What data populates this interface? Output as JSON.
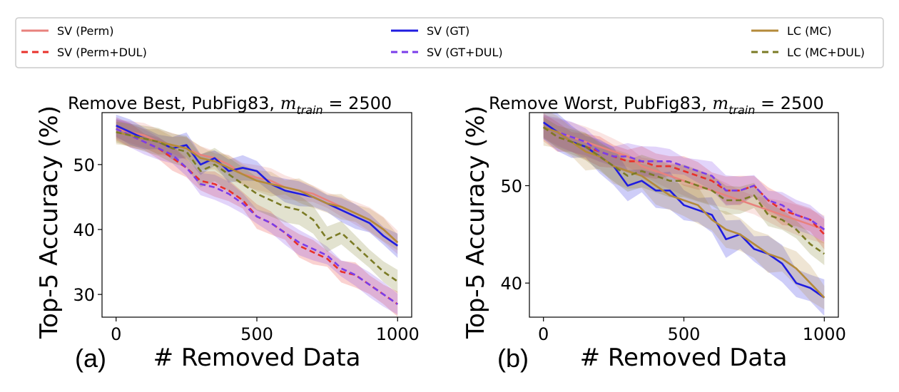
{
  "legend": {
    "entries": [
      {
        "label": "SV (Perm)",
        "color": "#e8827d",
        "dash": "solid"
      },
      {
        "label": "SV (Perm+DUL)",
        "color": "#e8312a",
        "dash": "dashed"
      },
      {
        "label": "SV (GT)",
        "color": "#1f1ce0",
        "dash": "solid"
      },
      {
        "label": "SV (GT+DUL)",
        "color": "#7a3dea",
        "dash": "dashed"
      },
      {
        "label": "LC (MC)",
        "color": "#b48a3a",
        "dash": "solid"
      },
      {
        "label": "LC (MC+DUL)",
        "color": "#7b7b25",
        "dash": "dashed"
      }
    ]
  },
  "chart_data": [
    {
      "type": "line",
      "panel_label": "(a)",
      "title_prefix": "Remove Best, PubFig83, ",
      "title_var": "m",
      "title_sub": "train",
      "title_suffix": " = 2500",
      "xlabel": "# Removed Data",
      "ylabel": "Top-5 Accuracy (%)",
      "xlim": [
        -50,
        1050
      ],
      "ylim": [
        26.5,
        58
      ],
      "xticks": [
        0,
        500,
        1000
      ],
      "yticks": [
        30,
        40,
        50
      ],
      "x": [
        0,
        50,
        100,
        150,
        200,
        250,
        300,
        350,
        400,
        450,
        500,
        550,
        600,
        650,
        700,
        750,
        800,
        850,
        900,
        950,
        1000
      ],
      "series": [
        {
          "name": "SV (Perm)",
          "band": 1.5,
          "values": [
            55.5,
            55.0,
            54.5,
            53.5,
            53.0,
            52.5,
            51.5,
            51.0,
            50.0,
            48.5,
            48.0,
            47.5,
            46.5,
            46.0,
            45.5,
            44.5,
            43.5,
            42.5,
            41.5,
            40.0,
            38.0
          ]
        },
        {
          "name": "SV (Perm+DUL)",
          "band": 1.5,
          "values": [
            55.5,
            54.5,
            53.5,
            52.5,
            51.0,
            49.5,
            47.5,
            47.0,
            46.0,
            44.5,
            42.0,
            41.0,
            39.5,
            37.5,
            36.5,
            35.5,
            33.5,
            33.0,
            31.5,
            30.0,
            28.5
          ]
        },
        {
          "name": "SV (GT)",
          "band": 1.5,
          "values": [
            56.0,
            55.0,
            54.0,
            53.5,
            52.5,
            53.0,
            50.0,
            51.0,
            49.0,
            49.5,
            49.0,
            47.0,
            46.0,
            45.5,
            45.0,
            44.0,
            43.0,
            42.0,
            41.0,
            39.0,
            37.5
          ]
        },
        {
          "name": "SV (GT+DUL)",
          "band": 1.5,
          "values": [
            55.5,
            54.5,
            53.5,
            52.5,
            51.5,
            49.5,
            47.0,
            46.5,
            45.5,
            44.0,
            42.0,
            41.0,
            39.5,
            38.0,
            37.0,
            36.0,
            34.0,
            33.0,
            31.5,
            30.0,
            28.5
          ]
        },
        {
          "name": "LC (MC)",
          "band": 1.5,
          "values": [
            55.0,
            54.5,
            54.0,
            53.5,
            53.0,
            52.5,
            51.0,
            50.5,
            49.5,
            48.5,
            47.5,
            47.0,
            46.5,
            46.0,
            45.0,
            44.0,
            43.5,
            42.5,
            41.5,
            40.0,
            38.0
          ]
        },
        {
          "name": "LC (MC+DUL)",
          "band": 2.0,
          "values": [
            55.0,
            54.5,
            54.0,
            53.5,
            52.5,
            52.0,
            49.0,
            50.0,
            48.5,
            47.0,
            45.5,
            44.5,
            43.5,
            43.0,
            41.5,
            38.5,
            39.5,
            37.5,
            35.5,
            33.5,
            32.0
          ]
        }
      ]
    },
    {
      "type": "line",
      "panel_label": "(b)",
      "title_prefix": "Remove Worst, PubFig83, ",
      "title_var": "m",
      "title_sub": "train",
      "title_suffix": " = 2500",
      "xlabel": "# Removed Data",
      "ylabel": "Top-5 Accuracy (%)",
      "xlim": [
        -50,
        1050
      ],
      "ylim": [
        36.5,
        57.5
      ],
      "xticks": [
        0,
        500,
        1000
      ],
      "yticks": [
        40,
        50
      ],
      "x": [
        0,
        50,
        100,
        150,
        200,
        250,
        300,
        350,
        400,
        450,
        500,
        550,
        600,
        650,
        700,
        750,
        800,
        850,
        900,
        950,
        1000
      ],
      "series": [
        {
          "name": "SV (Perm)",
          "band": 1.2,
          "values": [
            56.0,
            55.5,
            55.0,
            54.5,
            54.0,
            53.5,
            53.0,
            52.0,
            51.5,
            51.0,
            50.5,
            50.0,
            49.5,
            49.0,
            48.5,
            48.0,
            47.5,
            47.0,
            46.5,
            46.0,
            45.5
          ]
        },
        {
          "name": "SV (Perm+DUL)",
          "band": 1.2,
          "values": [
            56.0,
            55.0,
            54.5,
            54.0,
            53.5,
            53.0,
            52.5,
            52.5,
            52.0,
            52.0,
            51.5,
            51.0,
            50.5,
            49.5,
            49.5,
            50.0,
            48.5,
            47.5,
            47.0,
            46.5,
            45.0
          ]
        },
        {
          "name": "SV (GT)",
          "band": 1.5,
          "values": [
            56.5,
            55.5,
            54.5,
            54.0,
            53.0,
            52.0,
            50.0,
            50.5,
            49.5,
            49.5,
            48.0,
            47.5,
            47.0,
            44.5,
            45.0,
            43.5,
            43.0,
            42.0,
            40.0,
            39.5,
            38.5
          ]
        },
        {
          "name": "SV (GT+DUL)",
          "band": 1.2,
          "values": [
            56.0,
            55.5,
            55.0,
            54.5,
            53.5,
            53.0,
            53.0,
            52.5,
            52.5,
            52.5,
            52.0,
            51.5,
            51.0,
            49.5,
            49.5,
            50.0,
            48.5,
            48.0,
            47.0,
            46.5,
            45.5
          ]
        },
        {
          "name": "LC (MC)",
          "band": 1.5,
          "values": [
            56.0,
            55.5,
            54.5,
            53.5,
            53.0,
            52.0,
            51.5,
            51.0,
            50.0,
            49.0,
            48.5,
            48.0,
            46.5,
            45.5,
            45.0,
            44.0,
            43.0,
            42.5,
            41.5,
            40.0,
            38.5
          ]
        },
        {
          "name": "LC (MC+DUL)",
          "band": 1.3,
          "values": [
            56.0,
            55.0,
            54.5,
            54.0,
            53.0,
            52.0,
            51.0,
            51.5,
            51.0,
            50.5,
            50.5,
            50.0,
            49.5,
            48.5,
            48.5,
            49.0,
            47.0,
            46.5,
            45.5,
            44.0,
            43.0
          ]
        }
      ]
    }
  ]
}
